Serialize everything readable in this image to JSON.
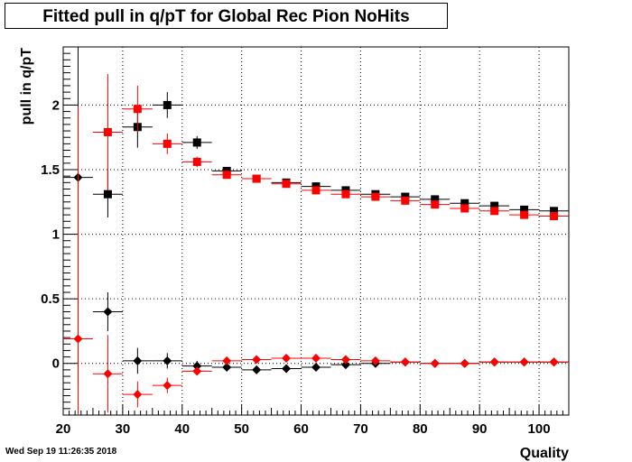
{
  "chart_data": {
    "type": "scatter",
    "title": "Fitted pull in q/pT for Global Rec Pion NoHits",
    "xlabel": "Quality",
    "ylabel": "pull in q/pT",
    "xlim": [
      20,
      105
    ],
    "ylim": [
      -0.4,
      2.45
    ],
    "grid": true,
    "x_ticks": [
      20,
      30,
      40,
      50,
      60,
      70,
      80,
      90,
      100
    ],
    "y_ticks": [
      0,
      0.5,
      1,
      1.5,
      2
    ],
    "x_tick_labels": [
      "20",
      "30",
      "40",
      "50",
      "60",
      "70",
      "80",
      "90",
      "100"
    ],
    "y_tick_labels": [
      "0",
      "0.5",
      "1",
      "1.5",
      "2"
    ],
    "bin_half_width": 2.5,
    "series": [
      {
        "marker": "square",
        "color": "#000000",
        "x": [
          27.5,
          32.5,
          37.5,
          42.5,
          47.5,
          52.5,
          57.5,
          62.5,
          67.5,
          72.5,
          77.5,
          82.5,
          87.5,
          92.5,
          97.5,
          102.5
        ],
        "y": [
          1.31,
          1.83,
          2.0,
          1.71,
          1.49,
          1.43,
          1.4,
          1.37,
          1.34,
          1.31,
          1.29,
          1.27,
          1.24,
          1.22,
          1.19,
          1.18
        ],
        "yerr": [
          0.18,
          0.16,
          0.1,
          0.05,
          0.02,
          0.015,
          0.015,
          0.01,
          0.01,
          0.01,
          0.01,
          0.01,
          0.01,
          0.01,
          0.01,
          0.01
        ]
      },
      {
        "marker": "square",
        "color": "#ff0000",
        "x": [
          27.5,
          32.5,
          37.5,
          42.5,
          47.5,
          52.5,
          57.5,
          62.5,
          67.5,
          72.5,
          77.5,
          82.5,
          87.5,
          92.5,
          97.5,
          102.5
        ],
        "y": [
          1.79,
          1.97,
          1.7,
          1.56,
          1.46,
          1.43,
          1.39,
          1.34,
          1.31,
          1.29,
          1.26,
          1.23,
          1.2,
          1.18,
          1.15,
          1.14
        ],
        "yerr": [
          0.45,
          0.18,
          0.08,
          0.04,
          0.02,
          0.015,
          0.015,
          0.01,
          0.01,
          0.01,
          0.01,
          0.01,
          0.01,
          0.01,
          0.01,
          0.01
        ]
      },
      {
        "marker": "diamond",
        "color": "#000000",
        "x": [
          22.5,
          27.5,
          32.5,
          37.5,
          42.5,
          47.5,
          52.5,
          57.5,
          62.5,
          67.5,
          72.5,
          77.5,
          82.5,
          87.5,
          92.5,
          97.5,
          102.5
        ],
        "y": [
          1.44,
          0.4,
          0.02,
          0.02,
          -0.02,
          -0.03,
          -0.05,
          -0.04,
          -0.03,
          -0.01,
          0.0,
          0.01,
          0.0,
          0.0,
          0.01,
          0.01,
          0.01
        ],
        "yerr": [
          1.6,
          0.15,
          0.1,
          0.06,
          0.04,
          0.015,
          0.01,
          0.01,
          0.01,
          0.01,
          0.01,
          0.01,
          0.01,
          0.01,
          0.01,
          0.01,
          0.01
        ]
      },
      {
        "marker": "diamond",
        "color": "#ff0000",
        "x": [
          22.5,
          27.5,
          32.5,
          37.5,
          42.5,
          47.5,
          52.5,
          57.5,
          62.5,
          67.5,
          72.5,
          77.5,
          82.5,
          87.5,
          92.5,
          97.5,
          102.5
        ],
        "y": [
          0.19,
          -0.08,
          -0.24,
          -0.17,
          -0.06,
          0.02,
          0.03,
          0.04,
          0.04,
          0.03,
          0.02,
          0.01,
          0.0,
          0.0,
          0.01,
          0.01,
          0.01
        ],
        "yerr": [
          1.8,
          0.3,
          0.1,
          0.06,
          0.03,
          0.01,
          0.01,
          0.01,
          0.01,
          0.01,
          0.01,
          0.01,
          0.01,
          0.01,
          0.01,
          0.01,
          0.01
        ]
      }
    ]
  },
  "footer": {
    "timestamp": "Wed Sep 19 11:26:35 2018"
  }
}
